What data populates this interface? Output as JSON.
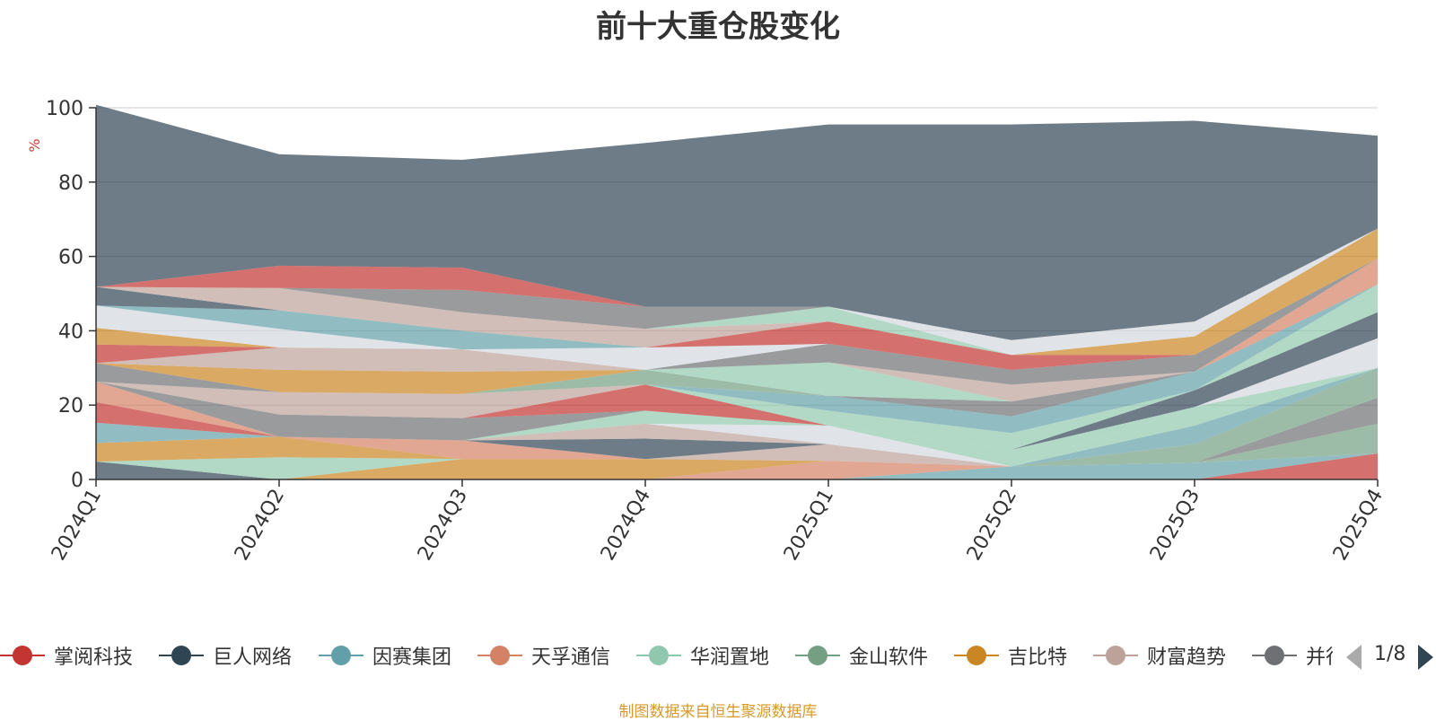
{
  "chart_data": {
    "type": "area",
    "stacked": true,
    "title": "前十大重仓股变化",
    "ylabel": "%",
    "ylim": [
      0,
      100
    ],
    "yticks": [
      0,
      20,
      40,
      60,
      80,
      100
    ],
    "categories": [
      "2024Q1",
      "2024Q2",
      "2024Q3",
      "2024Q4",
      "2025Q1",
      "2025Q2",
      "2025Q3",
      "2025Q4"
    ],
    "series": [
      {
        "name": "掌阅科技",
        "color": "#c23531",
        "values": [
          0,
          0,
          0,
          0,
          0,
          0,
          0,
          7
        ]
      },
      {
        "name": "巨人网络",
        "color": "#2f4554",
        "values": [
          0,
          0,
          0,
          0,
          0,
          0,
          0,
          0
        ]
      },
      {
        "name": "因赛集团",
        "color": "#61a0a8",
        "values": [
          0,
          0,
          0,
          0,
          0,
          3.5,
          4.5,
          0
        ]
      },
      {
        "name": "天孚通信",
        "color": "#d48265",
        "values": [
          0,
          0,
          0,
          0,
          5,
          0,
          0,
          0
        ]
      },
      {
        "name": "华润置地",
        "color": "#91c7ae",
        "values": [
          0,
          0,
          0,
          0,
          0,
          0,
          0,
          0
        ]
      },
      {
        "name": "金山软件",
        "color": "#749f83",
        "values": [
          0,
          0,
          0,
          0,
          0,
          0,
          0,
          8
        ]
      },
      {
        "name": "吉比特",
        "color": "#ca8622",
        "values": [
          0,
          0,
          5.5,
          5.5,
          0,
          0,
          0,
          0
        ]
      },
      {
        "name": "财富趋势",
        "color": "#bda29a",
        "values": [
          0,
          0,
          0,
          0,
          4.5,
          0,
          0,
          0
        ]
      },
      {
        "name": "并行科技",
        "color": "#6e7074",
        "values": [
          0,
          0,
          0,
          0,
          0,
          0,
          0,
          7
        ]
      },
      {
        "name": "",
        "color": "#2f4554",
        "values": [
          4.8,
          0,
          0,
          0,
          0,
          0,
          0,
          0
        ]
      },
      {
        "name": "",
        "color": "#91c7ae",
        "values": [
          0,
          6,
          0,
          0,
          0,
          0,
          0,
          0
        ]
      },
      {
        "name": "",
        "color": "#ca8622",
        "values": [
          5,
          5.5,
          0,
          0,
          0,
          0,
          0,
          0
        ]
      },
      {
        "name": "",
        "color": "#749f83",
        "values": [
          0,
          0,
          0,
          0,
          0,
          0,
          5,
          8
        ]
      },
      {
        "name": "",
        "color": "#61a0a8",
        "values": [
          5.5,
          0,
          0,
          0,
          0,
          0,
          5,
          0
        ]
      },
      {
        "name": "",
        "color": "#d48265",
        "values": [
          0,
          0,
          5,
          0,
          0,
          0,
          0,
          0
        ]
      },
      {
        "name": "",
        "color": "#2f4554",
        "values": [
          0,
          0,
          0,
          5.5,
          0,
          0,
          0,
          0
        ]
      },
      {
        "name": "",
        "color": "#bda29a",
        "values": [
          0,
          0,
          0,
          4,
          0,
          0,
          0,
          0
        ]
      },
      {
        "name": "",
        "color": "#c23531",
        "values": [
          5.5,
          0,
          0,
          0,
          0,
          0,
          0,
          0
        ]
      },
      {
        "name": "",
        "color": "#91c7ae",
        "values": [
          0,
          0,
          0,
          0,
          0,
          0,
          5,
          0
        ]
      },
      {
        "name": "",
        "color": "#d3d8df",
        "values": [
          0,
          0,
          0,
          0,
          5,
          0,
          0,
          8
        ]
      },
      {
        "name": "",
        "color": "#91c7ae",
        "values": [
          0,
          0,
          0,
          3.5,
          0,
          4.5,
          0,
          0
        ]
      },
      {
        "name": "",
        "color": "#2f4554",
        "values": [
          0,
          0,
          0,
          0,
          0,
          0,
          4.5,
          7
        ]
      },
      {
        "name": "",
        "color": "#d48265",
        "values": [
          5.5,
          0,
          0,
          0,
          0,
          0,
          0,
          0
        ]
      },
      {
        "name": "",
        "color": "#6e7074",
        "values": [
          0,
          6,
          6,
          0,
          0,
          0,
          0,
          0
        ]
      },
      {
        "name": "",
        "color": "#c23531",
        "values": [
          0,
          0,
          0,
          7,
          0,
          0,
          0,
          0
        ]
      },
      {
        "name": "",
        "color": "#bda29a",
        "values": [
          0,
          6,
          6.5,
          0,
          0,
          0,
          0,
          0
        ]
      },
      {
        "name": "",
        "color": "#91c7ae",
        "values": [
          0,
          0,
          0,
          0,
          4,
          4.5,
          0,
          7.5
        ]
      },
      {
        "name": "",
        "color": "#61a0a8",
        "values": [
          0,
          0,
          0,
          0,
          4,
          4.5,
          5,
          0
        ]
      },
      {
        "name": "",
        "color": "#6e7074",
        "values": [
          5,
          0,
          0,
          0,
          0,
          4,
          0,
          0
        ]
      },
      {
        "name": "",
        "color": "#749f83",
        "values": [
          0,
          0,
          0,
          4,
          0,
          0,
          0,
          0
        ]
      },
      {
        "name": "",
        "color": "#d48265",
        "values": [
          0,
          0,
          0,
          0,
          0,
          0,
          0,
          7
        ]
      },
      {
        "name": "",
        "color": "#ca8622",
        "values": [
          0,
          6,
          6,
          0,
          0,
          0,
          0,
          0
        ]
      },
      {
        "name": "",
        "color": "#bda29a",
        "values": [
          0,
          6,
          6,
          0,
          0,
          0,
          0,
          0
        ]
      },
      {
        "name": "",
        "color": "#91c7ae",
        "values": [
          0,
          0,
          0,
          0,
          9,
          0,
          0,
          0
        ]
      },
      {
        "name": "",
        "color": "#bda29a",
        "values": [
          0,
          0,
          0,
          0,
          0,
          4.5,
          0,
          0
        ]
      },
      {
        "name": "",
        "color": "#c23531",
        "values": [
          5,
          0,
          0,
          0,
          0,
          0,
          0,
          0
        ]
      },
      {
        "name": "",
        "color": "#6e7074",
        "values": [
          0,
          0,
          0,
          0,
          5,
          4,
          4.5,
          0
        ]
      },
      {
        "name": "",
        "color": "#ca8622",
        "values": [
          4.5,
          0,
          0,
          0,
          0,
          0,
          0,
          0
        ]
      },
      {
        "name": "",
        "color": "#d3d8df",
        "values": [
          6,
          5,
          0,
          6,
          0,
          0,
          0,
          0
        ]
      },
      {
        "name": "",
        "color": "#61a0a8",
        "values": [
          0,
          5,
          5,
          0,
          0,
          0,
          0,
          0
        ]
      },
      {
        "name": "",
        "color": "#c23531",
        "values": [
          0,
          0,
          0,
          0,
          6,
          4,
          0,
          0
        ]
      },
      {
        "name": "",
        "color": "#ca8622",
        "values": [
          0,
          0,
          0,
          0,
          0,
          0,
          5,
          8
        ]
      },
      {
        "name": "",
        "color": "#2f4554",
        "values": [
          5,
          0,
          0,
          0,
          0,
          0,
          0,
          0
        ]
      },
      {
        "name": "",
        "color": "#bda29a",
        "values": [
          0,
          6,
          5,
          5,
          0,
          0,
          0,
          0
        ]
      },
      {
        "name": "",
        "color": "#91c7ae",
        "values": [
          0,
          0,
          0,
          0,
          4,
          0,
          0,
          0
        ]
      },
      {
        "name": "",
        "color": "#6e7074",
        "values": [
          0,
          0,
          6,
          6,
          0,
          0,
          0,
          0
        ]
      },
      {
        "name": "",
        "color": "#c23531",
        "values": [
          0,
          6,
          6,
          0,
          0,
          0,
          0,
          0
        ]
      },
      {
        "name": "",
        "color": "#d3d8df",
        "values": [
          0,
          0,
          0,
          0,
          0,
          4,
          4,
          0
        ]
      },
      {
        "name": "",
        "color": "#2f4554",
        "values": [
          49,
          30,
          29,
          44,
          49,
          58,
          54,
          25
        ]
      }
    ]
  },
  "legend": {
    "items": [
      {
        "label": "掌阅科技",
        "color": "#c23531"
      },
      {
        "label": "巨人网络",
        "color": "#2f4554"
      },
      {
        "label": "因赛集团",
        "color": "#61a0a8"
      },
      {
        "label": "天孚通信",
        "color": "#d48265"
      },
      {
        "label": "华润置地",
        "color": "#91c7ae"
      },
      {
        "label": "金山软件",
        "color": "#749f83"
      },
      {
        "label": "吉比特",
        "color": "#ca8622"
      },
      {
        "label": "财富趋势",
        "color": "#bda29a"
      },
      {
        "label": "并行科技",
        "color": "#6e7074"
      }
    ],
    "page": "1/8"
  },
  "footer": {
    "source": "制图数据来自恒生聚源数据库"
  }
}
